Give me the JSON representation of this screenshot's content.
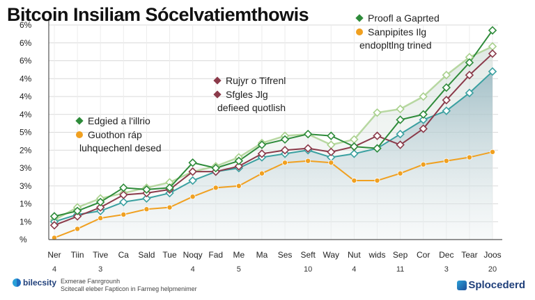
{
  "title": "Bitcoin Insiliam Sócelvatiemthowis",
  "colors": {
    "green": "#2e8b3a",
    "orange": "#f0a020",
    "maroon": "#8b3a4a",
    "teal": "#3aa0a0",
    "lightgreen": "#a8d08c",
    "area": "#b8cfd6"
  },
  "chart_data": {
    "type": "line",
    "title": "Bitcoin Insiliam Sócelvatiemthowis",
    "y_tick_labels": [
      "%",
      "1%",
      "1%",
      "3%",
      "3%",
      "2%",
      "5%",
      "4%",
      "4%",
      "4%",
      "6%",
      "6%",
      "6%"
    ],
    "x_tick_labels": [
      "Ner",
      "Tiin",
      "Tive",
      "Ca",
      "Sald",
      "Tue",
      "Noqy",
      "Fad",
      "Me",
      "Ma",
      "Ses",
      "Seft",
      "Way",
      "Nut",
      "wids",
      "Sep",
      "Cor",
      "Dec",
      "Tear",
      "Joos"
    ],
    "x_sub_labels": [
      "4",
      "",
      "3",
      "",
      "",
      "",
      "4",
      "",
      "5",
      "",
      "",
      "10",
      "",
      "4",
      "",
      "11",
      "",
      "3",
      "",
      "20"
    ],
    "grid": true,
    "series": [
      {
        "name": "Proofl a Gaprted",
        "color": "#2e8b3a",
        "values": [
          1.3,
          1.6,
          2.1,
          2.9,
          2.8,
          2.9,
          4.3,
          4.0,
          4.4,
          5.3,
          5.6,
          5.9,
          5.8,
          5.2,
          5.1,
          6.7,
          7.0,
          8.5,
          9.9,
          11.7
        ]
      },
      {
        "name": "Sanpipites",
        "color": "#f0a020",
        "values": [
          0.1,
          0.6,
          1.2,
          1.4,
          1.7,
          1.8,
          2.4,
          2.9,
          3.0,
          3.7,
          4.3,
          4.4,
          4.3,
          3.3,
          3.3,
          3.7,
          4.2,
          4.4,
          4.6,
          4.9
        ]
      },
      {
        "name": "Rujyr o Tifrenl",
        "color": "#8b3a4a",
        "values": [
          0.8,
          1.3,
          1.8,
          2.5,
          2.6,
          2.8,
          3.8,
          3.8,
          4.1,
          4.8,
          5.0,
          5.1,
          4.9,
          5.2,
          5.8,
          5.3,
          6.2,
          7.8,
          9.2,
          10.4
        ]
      },
      {
        "name": "Sfgles",
        "color": "#3aa0a0",
        "values": [
          1.0,
          1.4,
          1.6,
          2.1,
          2.3,
          2.6,
          3.3,
          3.8,
          4.0,
          4.6,
          4.8,
          5.0,
          4.6,
          4.8,
          5.1,
          5.9,
          6.7,
          7.2,
          8.2,
          9.4
        ]
      },
      {
        "name": "Edgied a l'illrio",
        "color": "#a8d08c",
        "values": [
          1.1,
          1.8,
          2.3,
          2.6,
          2.9,
          3.2,
          3.8,
          4.1,
          4.6,
          5.4,
          5.8,
          5.9,
          5.3,
          5.6,
          7.1,
          7.3,
          8.0,
          9.2,
          10.2,
          10.8
        ]
      }
    ],
    "legends": [
      {
        "items": [
          {
            "name": "Proofl a Gaprted",
            "color": "#2e8b3a",
            "marker": "diamond"
          },
          {
            "name": "Sanpipites  Ilg",
            "color": "#f0a020",
            "marker": "hexagon"
          }
        ],
        "subtitle": "endopltlng trined",
        "placement": "top-right"
      },
      {
        "items": [
          {
            "name": "Rujyr o Tifrenl",
            "color": "#8b3a4a",
            "marker": "diamond"
          },
          {
            "name": "Sfgles  Jlg",
            "color": "#8b3a4a",
            "marker": "diamond"
          }
        ],
        "subtitle": "defieed quotlish",
        "placement": "top-center"
      },
      {
        "items": [
          {
            "name": "Edgied a l'illrio",
            "color": "#2e8b3a",
            "marker": "diamond"
          },
          {
            "name": "Guothon ráp",
            "color": "#f0a020",
            "marker": "hexagon"
          }
        ],
        "subtitle": "luhquechenl desed",
        "placement": "left"
      }
    ]
  },
  "footer": {
    "left_logo": "bilecsity",
    "left_line1": "Exmerae Fanrgrounh",
    "left_line2": "Scitecall eleber Fapticon in Farmeg helpmenimer",
    "right_logo": "Splocederd"
  }
}
